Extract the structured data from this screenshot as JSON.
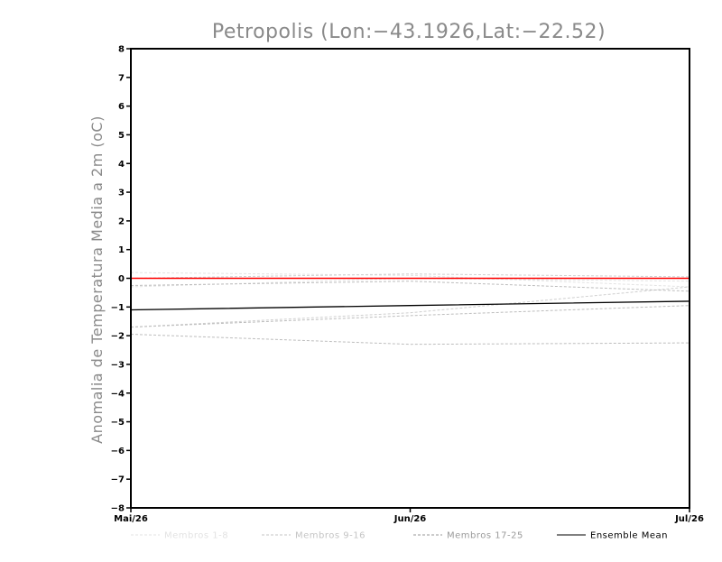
{
  "chart_data": {
    "type": "line",
    "title": "Petropolis (Lon:−43.1926,Lat:−22.52)",
    "ylabel": "Anomalia de Temperatura Media a 2m (oC)",
    "xlabel": "",
    "categories": [
      "Mai/26",
      "Jun/26",
      "Jul/26"
    ],
    "ylim": [
      -8,
      8
    ],
    "yticks": [
      8,
      7,
      6,
      5,
      4,
      3,
      2,
      1,
      0,
      -1,
      -2,
      -3,
      -4,
      -5,
      -6,
      -7,
      -8
    ],
    "yticklabels": [
      "8",
      "7",
      "6",
      "5",
      "4",
      "3",
      "2",
      "1",
      "0",
      "−1",
      "−2",
      "−3",
      "−4",
      "−5",
      "−6",
      "−7",
      "−8"
    ],
    "grid": false,
    "legend_position": "bottom",
    "reference_line": {
      "y": 0,
      "color": "#ff0000"
    },
    "series": [
      {
        "group": "Membros 1-8",
        "values": [
          0.2,
          0.1,
          -0.3
        ],
        "color": "#e3e3e3",
        "style": "dashed"
      },
      {
        "group": "Membros 1-8",
        "values": [
          -0.3,
          0.0,
          -0.1
        ],
        "color": "#e3e3e3",
        "style": "dashed"
      },
      {
        "group": "Membros 9-16",
        "values": [
          -1.7,
          -1.2,
          -0.3
        ],
        "color": "#cfcfcf",
        "style": "dashed"
      },
      {
        "group": "Membros 9-16",
        "values": [
          0.0,
          0.15,
          0.05
        ],
        "color": "#cfcfcf",
        "style": "dashed"
      },
      {
        "group": "Membros 17-25",
        "values": [
          -1.7,
          -1.3,
          -0.95
        ],
        "color": "#bdbdbd",
        "style": "dashed"
      },
      {
        "group": "Membros 17-25",
        "values": [
          -1.95,
          -2.3,
          -2.25
        ],
        "color": "#bdbdbd",
        "style": "dashed"
      },
      {
        "group": "Membros 17-25",
        "values": [
          -0.25,
          -0.1,
          -0.45
        ],
        "color": "#bdbdbd",
        "style": "dashed"
      },
      {
        "name": "Ensemble Mean",
        "values": [
          -1.1,
          -0.95,
          -0.8
        ],
        "color": "#000000",
        "style": "solid"
      }
    ],
    "legend": [
      {
        "label": "Membros 1-8",
        "color": "#e3e3e3",
        "style": "dashed"
      },
      {
        "label": "Membros 9-16",
        "color": "#c4c4c4",
        "style": "dashed"
      },
      {
        "label": "Membros 17-25",
        "color": "#9a9a9a",
        "style": "dashed"
      },
      {
        "label": "Ensemble Mean",
        "color": "#000000",
        "style": "solid"
      }
    ]
  }
}
